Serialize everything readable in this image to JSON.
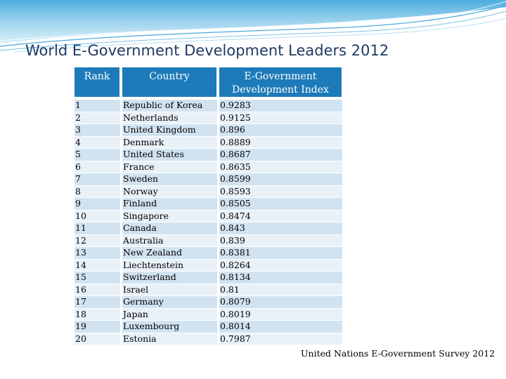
{
  "slide": {
    "title": "World E-Government Development Leaders 2012",
    "source": "United Nations E-Government Survey 2012"
  },
  "table": {
    "headers": {
      "rank": "Rank",
      "country": "Country",
      "index_line1": "E-Government",
      "index_line2": "Development Index"
    },
    "rows": [
      {
        "rank": "1",
        "country": "Republic of Korea",
        "index": "0.9283"
      },
      {
        "rank": "2",
        "country": "Netherlands",
        "index": "0.9125"
      },
      {
        "rank": "3",
        "country": "United Kingdom",
        "index": "0.896"
      },
      {
        "rank": "4",
        "country": "Denmark",
        "index": "0.8889"
      },
      {
        "rank": "5",
        "country": "United States",
        "index": "0.8687"
      },
      {
        "rank": "6",
        "country": "France",
        "index": "0.8635"
      },
      {
        "rank": "7",
        "country": "Sweden",
        "index": "0.8599"
      },
      {
        "rank": "8",
        "country": "Norway",
        "index": "0.8593"
      },
      {
        "rank": "9",
        "country": "Finland",
        "index": "0.8505"
      },
      {
        "rank": "10",
        "country": "Singapore",
        "index": "0.8474"
      },
      {
        "rank": "11",
        "country": "Canada",
        "index": "0.843"
      },
      {
        "rank": "12",
        "country": "Australia",
        "index": "0.839"
      },
      {
        "rank": "13",
        "country": "New Zealand",
        "index": "0.8381"
      },
      {
        "rank": "14",
        "country": "Liechtenstein",
        "index": "0.8264"
      },
      {
        "rank": "15",
        "country": "Switzerland",
        "index": "0.8134"
      },
      {
        "rank": "16",
        "country": "Israel",
        "index": "0.81"
      },
      {
        "rank": "17",
        "country": "Germany",
        "index": "0.8079"
      },
      {
        "rank": "18",
        "country": "Japan",
        "index": "0.8019"
      },
      {
        "rank": "19",
        "country": "Luxembourg",
        "index": "0.8014"
      },
      {
        "rank": "20",
        "country": "Estonia",
        "index": "0.7987"
      }
    ]
  },
  "theme": {
    "header_bg": "#1e7bb9",
    "row_odd": "#d1e3f1",
    "row_even": "#e9f1f8",
    "title_color": "#1f3b63",
    "deco_color": "#4aa9dc"
  }
}
